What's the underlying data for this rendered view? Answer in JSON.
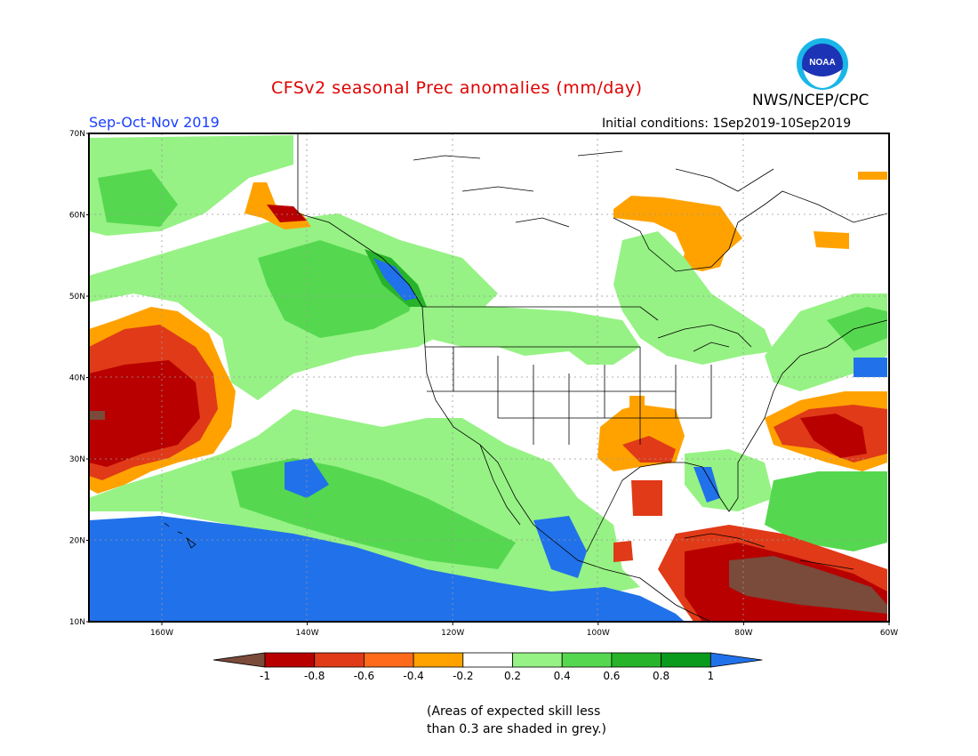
{
  "header": {
    "title": "CFSv2 seasonal Prec anomalies (mm/day)",
    "period": "Sep-Oct-Nov 2019",
    "agency": "NWS/NCEP/CPC",
    "initial_conditions": "Initial conditions: 1Sep2019-10Sep2019"
  },
  "logo": {
    "text": "NOAA",
    "icon": "noaa-logo"
  },
  "map": {
    "lat_labels": [
      "70N",
      "60N",
      "50N",
      "40N",
      "30N",
      "20N",
      "10N"
    ],
    "lon_labels": [
      "160W",
      "140W",
      "120W",
      "100W",
      "80W",
      "60W"
    ]
  },
  "colorbar": {
    "tick_labels": [
      "-1",
      "-0.8",
      "-0.6",
      "-0.4",
      "-0.2",
      "0.2",
      "0.4",
      "0.6",
      "0.8",
      "1"
    ],
    "colors": [
      "#7a4a3a",
      "#b80000",
      "#e03a18",
      "#ff6a1a",
      "#ffa200",
      "#ffffff",
      "#96f284",
      "#55d84f",
      "#27b32a",
      "#0a9a1c",
      "#2171ea"
    ]
  },
  "footnote": {
    "line1": "(Areas of expected skill less",
    "line2": "than 0.3 are shaded in grey.)"
  }
}
